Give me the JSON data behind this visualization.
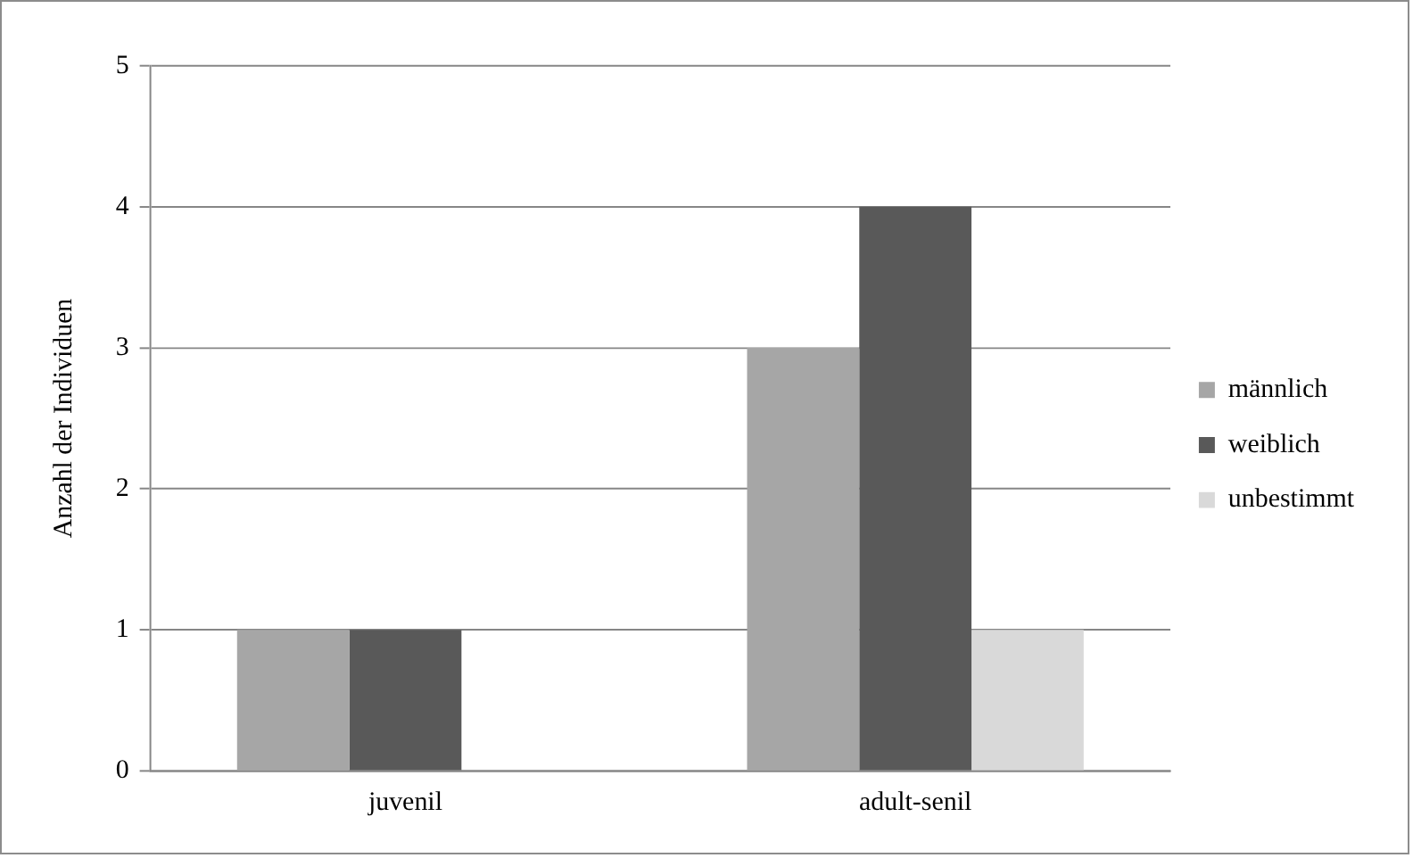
{
  "chart_data": {
    "type": "bar",
    "ylabel": "Anzahl der Individuen",
    "categories": [
      "juvenil",
      "adult-senil"
    ],
    "series": [
      {
        "name": "männlich",
        "color": "#a6a6a6",
        "values": [
          1,
          3
        ]
      },
      {
        "name": "weiblich",
        "color": "#595959",
        "values": [
          1,
          4
        ]
      },
      {
        "name": "unbestimmt",
        "color": "#d9d9d9",
        "values": [
          0,
          1
        ]
      }
    ],
    "ylim": [
      0,
      5
    ],
    "yticks": [
      0,
      1,
      2,
      3,
      4,
      5
    ],
    "grid": "y",
    "legend": "right"
  }
}
